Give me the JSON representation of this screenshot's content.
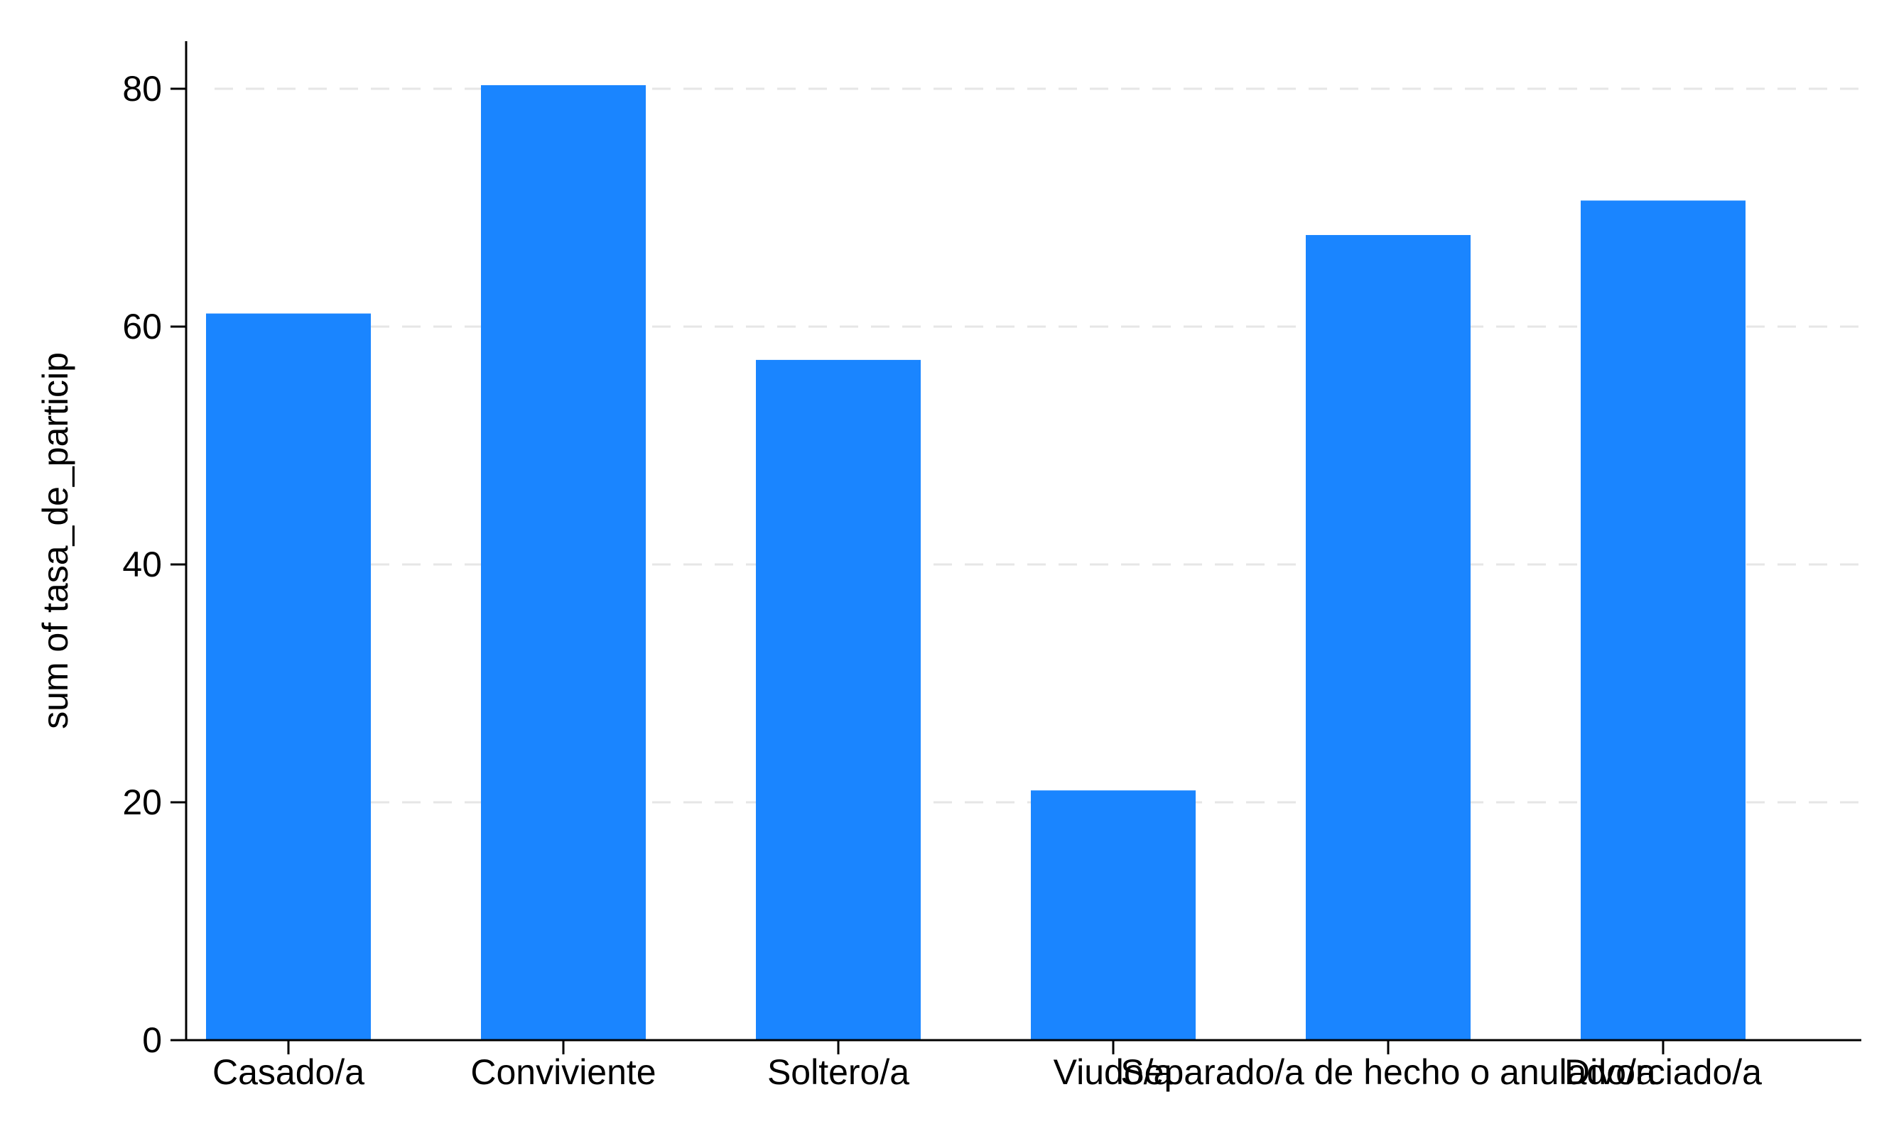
{
  "chart_data": {
    "type": "bar",
    "title": "",
    "xlabel": "",
    "ylabel": "sum of tasa_de_particip",
    "categories": [
      "Casado/a",
      "Conviviente",
      "Soltero/a",
      "Viudo/a",
      "Separado/a de hecho o anulado/a",
      "Divorciado/a"
    ],
    "values": [
      61.1,
      80.3,
      57.2,
      21.0,
      67.7,
      70.6
    ],
    "ylim": [
      0,
      84
    ],
    "yticks": [
      0,
      20,
      40,
      60,
      80
    ],
    "grid": "horizontal dashed",
    "legend": "none",
    "colors": {
      "bar": "#1a85ff",
      "grid": "#e6e6e6",
      "axis": "#000000"
    }
  }
}
